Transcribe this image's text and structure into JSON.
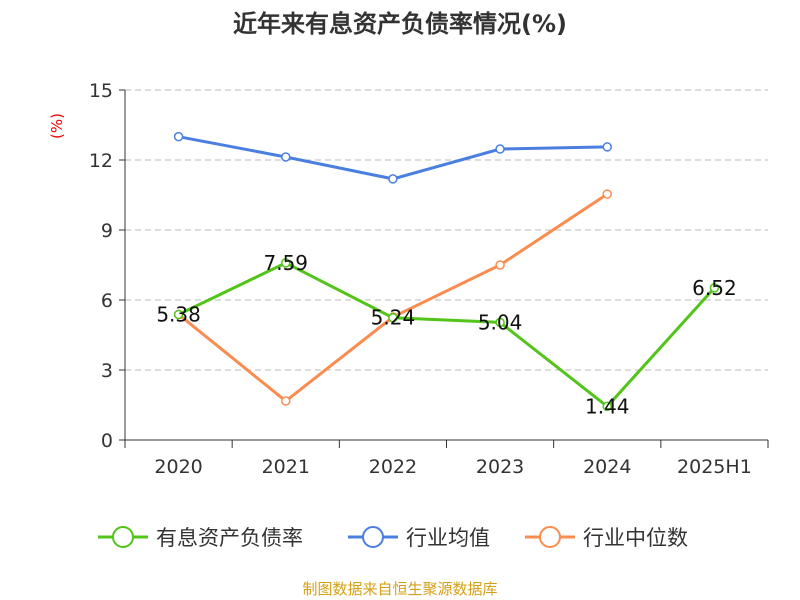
{
  "chart_data": {
    "type": "line",
    "title": "近年来有息资产负债率情况(%)",
    "ylabel": "(%)",
    "categories": [
      "2020",
      "2021",
      "2022",
      "2023",
      "2024",
      "2025H1"
    ],
    "ylim": [
      0,
      15
    ],
    "yticks": [
      0,
      3,
      6,
      9,
      12,
      15
    ],
    "grid": true,
    "legend_position": "bottom",
    "series": [
      {
        "name": "有息资产负债率",
        "color": "#52c41a",
        "values": [
          5.38,
          7.59,
          5.24,
          5.04,
          1.44,
          6.52
        ],
        "labels": [
          "5.38",
          "7.59",
          "5.24",
          "5.04",
          "1.44",
          "6.52"
        ]
      },
      {
        "name": "行业均值",
        "color": "#4a7fe0",
        "values": [
          13.0,
          12.13,
          11.19,
          12.47,
          12.56,
          null
        ]
      },
      {
        "name": "行业中位数",
        "color": "#fa8c50",
        "values": [
          5.38,
          1.67,
          5.27,
          7.5,
          10.54,
          null
        ]
      }
    ]
  },
  "source": "制图数据来自恒生聚源数据库"
}
